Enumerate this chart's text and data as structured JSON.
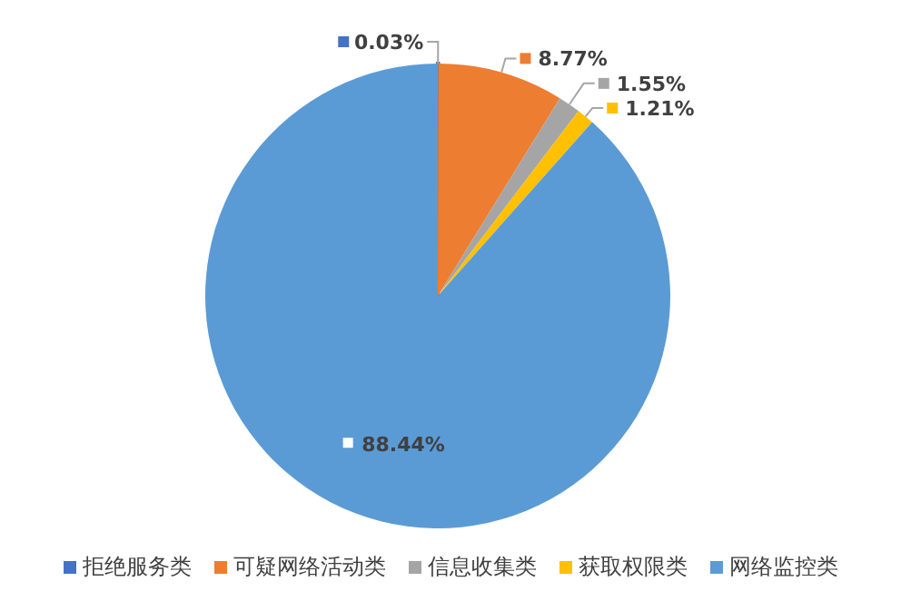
{
  "chart_data": {
    "type": "pie",
    "categories": [
      "拒绝服务类",
      "可疑网络活动类",
      "信息收集类",
      "获取权限类",
      "网络监控类"
    ],
    "values": [
      0.03,
      8.77,
      1.55,
      1.21,
      88.44
    ],
    "colors": [
      "#4472c4",
      "#ed7d31",
      "#a5a5a5",
      "#ffc000",
      "#5b9bd5"
    ],
    "value_labels": [
      "0.03%",
      "8.77%",
      "1.55%",
      "1.21%",
      "88.44%"
    ],
    "legend": "bottom"
  }
}
